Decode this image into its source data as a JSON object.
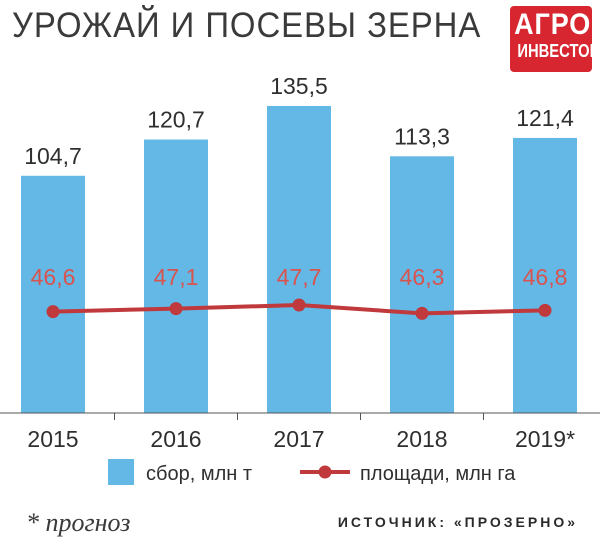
{
  "header": {
    "title": "УРОЖАЙ И ПОСЕВЫ ЗЕРНА",
    "logo_line1": "АГРО",
    "logo_line2": "ИНВЕСТОР"
  },
  "footer": {
    "footnote": "* прогноз",
    "source": "ИСТОЧНИК: «ПРОЗЕРНО»"
  },
  "colors": {
    "bar": "#63b8e6",
    "line": "#c0393c",
    "line_label": "#d9534f",
    "text": "#2f2f2f",
    "logo_bg": "#d7262f"
  },
  "chart_data": {
    "type": "bar",
    "categories": [
      "2015",
      "2016",
      "2017",
      "2018",
      "2019*"
    ],
    "series": [
      {
        "name": "сбор, млн т",
        "type": "bar",
        "values": [
          104.7,
          120.7,
          135.5,
          113.3,
          121.4
        ],
        "labels": [
          "104,7",
          "120,7",
          "135,5",
          "113,3",
          "121,4"
        ]
      },
      {
        "name": "площади, млн га",
        "type": "line",
        "values": [
          46.6,
          47.1,
          47.7,
          46.3,
          46.8
        ],
        "labels": [
          "46,6",
          "47,1",
          "47,7",
          "46,3",
          "46,8"
        ]
      }
    ],
    "legend": [
      "сбор, млн т",
      "площади, млн га"
    ],
    "legend_position": "bottom",
    "grid": false
  }
}
